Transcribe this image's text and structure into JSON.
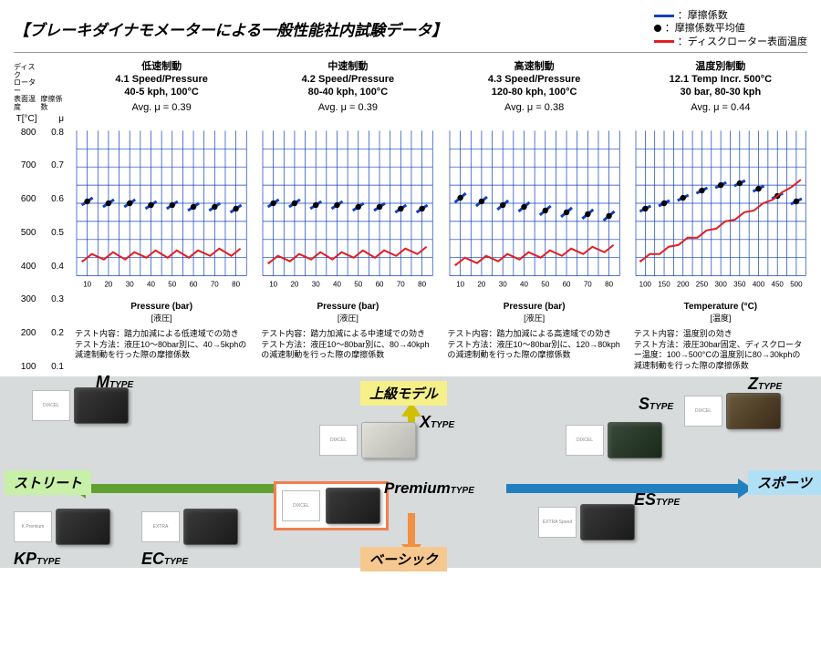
{
  "title": "【ブレーキダイナモメーターによる一般性能社内試験データ】",
  "legend": {
    "friction": "：摩擦係数",
    "friction_avg": "：摩擦係数平均値",
    "rotor_temp": "：ディスクローター表面温度",
    "line_color": "#1040c0",
    "dot_color": "#000000",
    "temp_color": "#e02020"
  },
  "yaxis": {
    "header1_l1": "ディスク",
    "header1_l2": "ローター",
    "header1_l3": "表面温度",
    "header2_l1": "摩擦係数",
    "unit1": "T[°C]",
    "unit2": "μ",
    "temp_ticks": [
      "800",
      "700",
      "600",
      "500",
      "400",
      "300",
      "200",
      "100"
    ],
    "mu_ticks": [
      "0.8",
      "0.7",
      "0.6",
      "0.5",
      "0.4",
      "0.3",
      "0.2",
      "0.1"
    ]
  },
  "charts": [
    {
      "jp_title": "低速制動",
      "en_line1": "4.1 Speed/Pressure",
      "en_line2": "40-5 kph, 100°C",
      "avg": "Avg. μ = 0.39",
      "xticks": [
        "10",
        "20",
        "30",
        "40",
        "50",
        "60",
        "70",
        "80"
      ],
      "xlabel": "Pressure (bar)",
      "xlabel2": "[液圧]",
      "desc1": "テスト内容：踏力加減による低速域での効き",
      "desc2": "テスト方法：液圧10～80bar別に、40→5kphの減速制動を行った際の摩擦係数",
      "mu_avg": [
        0.41,
        0.4,
        0.4,
        0.39,
        0.39,
        0.38,
        0.38,
        0.37
      ],
      "mu_spread": 0.04,
      "temp": [
        0.1,
        0.11,
        0.11,
        0.12,
        0.12,
        0.12,
        0.13,
        0.13
      ]
    },
    {
      "jp_title": "中速制動",
      "en_line1": "4.2 Speed/Pressure",
      "en_line2": "80-40 kph, 100°C",
      "avg": "Avg. μ = 0.39",
      "xticks": [
        "10",
        "20",
        "30",
        "40",
        "50",
        "60",
        "70",
        "80"
      ],
      "xlabel": "Pressure (bar)",
      "xlabel2": "[液圧]",
      "desc1": "テスト内容：踏力加減による中速域での効き",
      "desc2": "テスト方法：液圧10～80bar別に、80→40kphの減速制動を行った際の摩擦係数",
      "mu_avg": [
        0.4,
        0.4,
        0.39,
        0.39,
        0.38,
        0.38,
        0.37,
        0.37
      ],
      "mu_spread": 0.04,
      "temp": [
        0.09,
        0.1,
        0.11,
        0.11,
        0.12,
        0.12,
        0.13,
        0.14
      ]
    },
    {
      "jp_title": "高速制動",
      "en_line1": "4.3 Speed/Pressure",
      "en_line2": "120-80 kph, 100°C",
      "avg": "Avg. μ = 0.38",
      "xticks": [
        "10",
        "20",
        "30",
        "40",
        "50",
        "60",
        "70",
        "80"
      ],
      "xlabel": "Pressure (bar)",
      "xlabel2": "[液圧]",
      "desc1": "テスト内容：踏力加減による高速域での効き",
      "desc2": "テスト方法：液圧10～80bar別に、120→80kphの減速制動を行った際の摩擦係数",
      "mu_avg": [
        0.43,
        0.41,
        0.39,
        0.38,
        0.36,
        0.35,
        0.34,
        0.33
      ],
      "mu_spread": 0.05,
      "temp": [
        0.08,
        0.09,
        0.1,
        0.11,
        0.12,
        0.13,
        0.14,
        0.15
      ]
    },
    {
      "jp_title": "温度別制動",
      "en_line1": "12.1 Temp Incr. 500°C",
      "en_line2": "30 bar, 80-30 kph",
      "avg": "Avg. μ = 0.44",
      "xticks": [
        "100",
        "150",
        "200",
        "250",
        "300",
        "350",
        "400",
        "450",
        "500"
      ],
      "xlabel": "Temperature (°C)",
      "xlabel2": "[温度]",
      "desc1": "テスト内容：温度別の効き",
      "desc2": "テスト方法：液圧30bar固定、ディスクローター温度：100→500°Cの温度別に80→30kphの減速制動を行った際の摩擦係数",
      "mu_avg": [
        0.37,
        0.4,
        0.43,
        0.47,
        0.5,
        0.51,
        0.48,
        0.44,
        0.41
      ],
      "mu_spread": 0.03,
      "temp": [
        0.1,
        0.14,
        0.19,
        0.23,
        0.28,
        0.33,
        0.38,
        0.44,
        0.51
      ]
    }
  ],
  "chart_style": {
    "grid_color": "#1040c0",
    "grid_width": 0.7,
    "blue": "#1040c0",
    "dot": "#000000",
    "red": "#e02020",
    "bg": "#ffffff"
  },
  "bottom": {
    "top_label": "上級モデル",
    "top_bg": "#f5f08a",
    "bottom_label": "ベーシック",
    "bottom_bg": "#f5c890",
    "left_label": "ストリート",
    "left_bg": "#c8f0a8",
    "right_label": "スポーツ",
    "right_bg": "#b0e0f5",
    "arrow_up": "#d0c000",
    "arrow_down": "#f09040",
    "arrow_left": "#60a030",
    "arrow_right": "#2080c0",
    "products": {
      "m": {
        "big": "M",
        "sub": "TYPE"
      },
      "x": {
        "big": "X",
        "sub": "TYPE"
      },
      "s": {
        "big": "S",
        "sub": "TYPE"
      },
      "z": {
        "big": "Z",
        "sub": "TYPE"
      },
      "kp": {
        "big": "KP",
        "sub": "TYPE"
      },
      "ec": {
        "big": "EC",
        "sub": "TYPE"
      },
      "es": {
        "big": "ES",
        "sub": "TYPE"
      },
      "premium": {
        "big": "Premium",
        "sub": "TYPE"
      }
    }
  }
}
